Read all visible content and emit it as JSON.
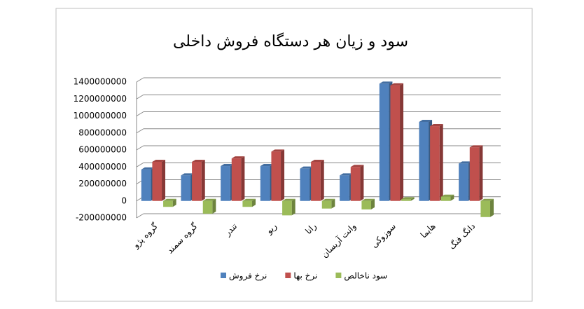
{
  "chart_data": {
    "type": "bar",
    "title": "سود و زیان هر دستگاه فروش داخلی",
    "categories": [
      "گروه پژو",
      "گروه سمند",
      "تندر",
      "ریو",
      "رانا",
      "وانت آریسان",
      "سوزوکی",
      "هایما",
      "دانگ فنگ"
    ],
    "series": [
      {
        "name": "نرخ فروش",
        "color": "#4f81bd",
        "values": [
          370000000,
          300000000,
          410000000,
          410000000,
          380000000,
          300000000,
          1380000000,
          930000000,
          440000000
        ]
      },
      {
        "name": "نرخ بها",
        "color": "#c0504d",
        "values": [
          460000000,
          460000000,
          500000000,
          580000000,
          460000000,
          400000000,
          1360000000,
          880000000,
          630000000
        ]
      },
      {
        "name": "سود ناخالص",
        "color": "#9bbb59",
        "values": [
          -70000000,
          -150000000,
          -70000000,
          -170000000,
          -90000000,
          -100000000,
          20000000,
          50000000,
          -190000000
        ]
      }
    ],
    "ylim": [
      -200000000,
      1400000000
    ],
    "yticks": [
      -200000000,
      0,
      200000000,
      400000000,
      600000000,
      800000000,
      1000000000,
      1200000000,
      1400000000
    ],
    "grid": true
  }
}
